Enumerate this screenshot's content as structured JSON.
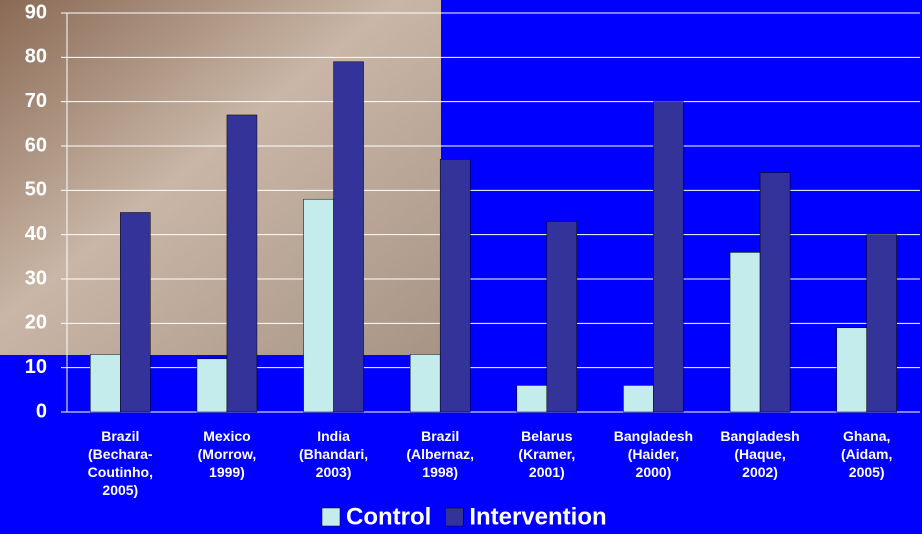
{
  "chart_data": {
    "type": "bar",
    "categories": [
      [
        "Brazil",
        "(Bechara-",
        "Coutinho,",
        "2005)"
      ],
      [
        "Mexico",
        "(Morrow,",
        "1999)"
      ],
      [
        "India",
        "(Bhandari,",
        "2003)"
      ],
      [
        "Brazil",
        "(Albernaz,",
        "1998)"
      ],
      [
        "Belarus",
        "(Kramer,",
        "2001)"
      ],
      [
        "Bangladesh",
        "(Haider,",
        "2000)"
      ],
      [
        "Bangladesh",
        "(Haque,",
        "2002)"
      ],
      [
        "Ghana,",
        "(Aidam,",
        "2005)"
      ]
    ],
    "series": [
      {
        "name": "Control",
        "color": "#c4ecec",
        "values": [
          13,
          12,
          48,
          13,
          6,
          6,
          36,
          19
        ]
      },
      {
        "name": "Intervention",
        "color": "#333399",
        "values": [
          45,
          67,
          79,
          57,
          43,
          70,
          54,
          40
        ]
      }
    ],
    "ylim": [
      0,
      90
    ],
    "yticks": [
      0,
      10,
      20,
      30,
      40,
      50,
      60,
      70,
      80,
      90
    ],
    "grid": true,
    "legend": "bottom"
  }
}
